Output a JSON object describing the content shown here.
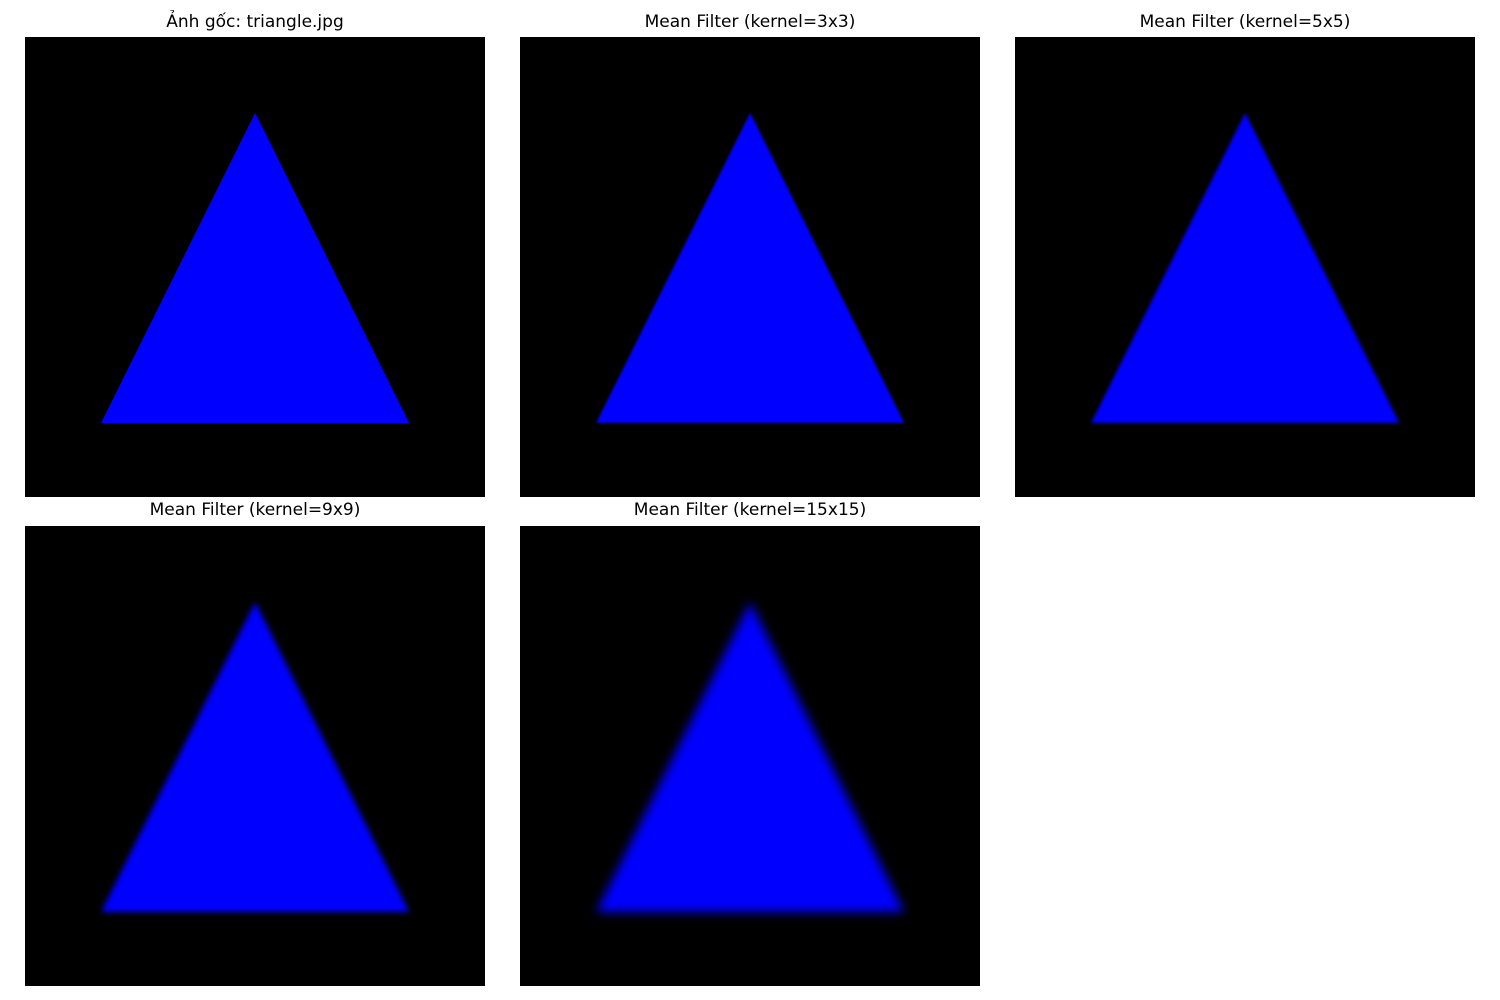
{
  "figure": {
    "background_color": "#ffffff",
    "image_background_color": "#000000",
    "shape_color": "#0000ff",
    "panels": [
      {
        "title": "Ảnh gốc: triangle.jpg",
        "blur_kernel": 1
      },
      {
        "title": "Mean Filter (kernel=3x3)",
        "blur_kernel": 3
      },
      {
        "title": "Mean Filter (kernel=5x5)",
        "blur_kernel": 5
      },
      {
        "title": "Mean Filter (kernel=9x9)",
        "blur_kernel": 9
      },
      {
        "title": "Mean Filter (kernel=15x15)",
        "blur_kernel": 15
      }
    ]
  }
}
